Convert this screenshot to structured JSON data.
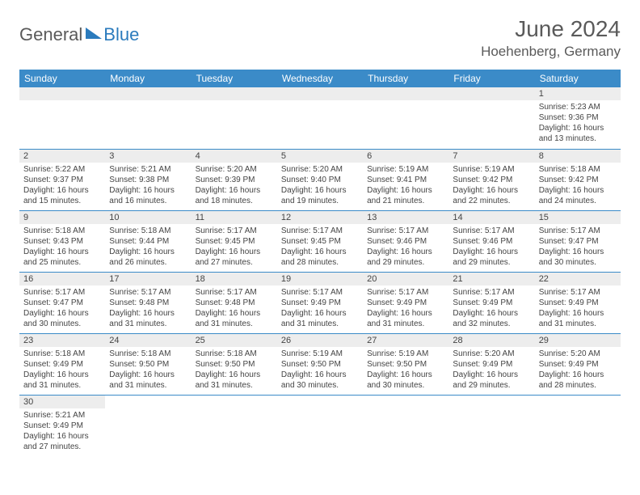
{
  "header": {
    "logo_part1": "General",
    "logo_part2": "Blue",
    "month_title": "June 2024",
    "location": "Hoehenberg, Germany"
  },
  "colors": {
    "header_bg": "#3b8bc8",
    "header_text": "#ffffff",
    "daynum_bg": "#ededed",
    "divider": "#3b8bc8",
    "body_text": "#444444",
    "title_text": "#5a5a5a",
    "logo_gray": "#5a5a5a",
    "logo_blue": "#2b7bbd",
    "page_bg": "#ffffff"
  },
  "typography": {
    "month_title_size": 28,
    "location_size": 17,
    "dayhead_size": 12,
    "daynum_size": 11,
    "body_size": 10,
    "font_family": "Arial"
  },
  "calendar": {
    "day_names": [
      "Sunday",
      "Monday",
      "Tuesday",
      "Wednesday",
      "Thursday",
      "Friday",
      "Saturday"
    ],
    "columns": 7,
    "first_weekday_index": 6,
    "days": [
      {
        "n": "1",
        "sunrise": "5:23 AM",
        "sunset": "9:36 PM",
        "daylight": "16 hours and 13 minutes."
      },
      {
        "n": "2",
        "sunrise": "5:22 AM",
        "sunset": "9:37 PM",
        "daylight": "16 hours and 15 minutes."
      },
      {
        "n": "3",
        "sunrise": "5:21 AM",
        "sunset": "9:38 PM",
        "daylight": "16 hours and 16 minutes."
      },
      {
        "n": "4",
        "sunrise": "5:20 AM",
        "sunset": "9:39 PM",
        "daylight": "16 hours and 18 minutes."
      },
      {
        "n": "5",
        "sunrise": "5:20 AM",
        "sunset": "9:40 PM",
        "daylight": "16 hours and 19 minutes."
      },
      {
        "n": "6",
        "sunrise": "5:19 AM",
        "sunset": "9:41 PM",
        "daylight": "16 hours and 21 minutes."
      },
      {
        "n": "7",
        "sunrise": "5:19 AM",
        "sunset": "9:42 PM",
        "daylight": "16 hours and 22 minutes."
      },
      {
        "n": "8",
        "sunrise": "5:18 AM",
        "sunset": "9:42 PM",
        "daylight": "16 hours and 24 minutes."
      },
      {
        "n": "9",
        "sunrise": "5:18 AM",
        "sunset": "9:43 PM",
        "daylight": "16 hours and 25 minutes."
      },
      {
        "n": "10",
        "sunrise": "5:18 AM",
        "sunset": "9:44 PM",
        "daylight": "16 hours and 26 minutes."
      },
      {
        "n": "11",
        "sunrise": "5:17 AM",
        "sunset": "9:45 PM",
        "daylight": "16 hours and 27 minutes."
      },
      {
        "n": "12",
        "sunrise": "5:17 AM",
        "sunset": "9:45 PM",
        "daylight": "16 hours and 28 minutes."
      },
      {
        "n": "13",
        "sunrise": "5:17 AM",
        "sunset": "9:46 PM",
        "daylight": "16 hours and 29 minutes."
      },
      {
        "n": "14",
        "sunrise": "5:17 AM",
        "sunset": "9:46 PM",
        "daylight": "16 hours and 29 minutes."
      },
      {
        "n": "15",
        "sunrise": "5:17 AM",
        "sunset": "9:47 PM",
        "daylight": "16 hours and 30 minutes."
      },
      {
        "n": "16",
        "sunrise": "5:17 AM",
        "sunset": "9:47 PM",
        "daylight": "16 hours and 30 minutes."
      },
      {
        "n": "17",
        "sunrise": "5:17 AM",
        "sunset": "9:48 PM",
        "daylight": "16 hours and 31 minutes."
      },
      {
        "n": "18",
        "sunrise": "5:17 AM",
        "sunset": "9:48 PM",
        "daylight": "16 hours and 31 minutes."
      },
      {
        "n": "19",
        "sunrise": "5:17 AM",
        "sunset": "9:49 PM",
        "daylight": "16 hours and 31 minutes."
      },
      {
        "n": "20",
        "sunrise": "5:17 AM",
        "sunset": "9:49 PM",
        "daylight": "16 hours and 31 minutes."
      },
      {
        "n": "21",
        "sunrise": "5:17 AM",
        "sunset": "9:49 PM",
        "daylight": "16 hours and 32 minutes."
      },
      {
        "n": "22",
        "sunrise": "5:17 AM",
        "sunset": "9:49 PM",
        "daylight": "16 hours and 31 minutes."
      },
      {
        "n": "23",
        "sunrise": "5:18 AM",
        "sunset": "9:49 PM",
        "daylight": "16 hours and 31 minutes."
      },
      {
        "n": "24",
        "sunrise": "5:18 AM",
        "sunset": "9:50 PM",
        "daylight": "16 hours and 31 minutes."
      },
      {
        "n": "25",
        "sunrise": "5:18 AM",
        "sunset": "9:50 PM",
        "daylight": "16 hours and 31 minutes."
      },
      {
        "n": "26",
        "sunrise": "5:19 AM",
        "sunset": "9:50 PM",
        "daylight": "16 hours and 30 minutes."
      },
      {
        "n": "27",
        "sunrise": "5:19 AM",
        "sunset": "9:50 PM",
        "daylight": "16 hours and 30 minutes."
      },
      {
        "n": "28",
        "sunrise": "5:20 AM",
        "sunset": "9:49 PM",
        "daylight": "16 hours and 29 minutes."
      },
      {
        "n": "29",
        "sunrise": "5:20 AM",
        "sunset": "9:49 PM",
        "daylight": "16 hours and 28 minutes."
      },
      {
        "n": "30",
        "sunrise": "5:21 AM",
        "sunset": "9:49 PM",
        "daylight": "16 hours and 27 minutes."
      }
    ],
    "labels": {
      "sunrise_prefix": "Sunrise: ",
      "sunset_prefix": "Sunset: ",
      "daylight_prefix": "Daylight: "
    }
  }
}
